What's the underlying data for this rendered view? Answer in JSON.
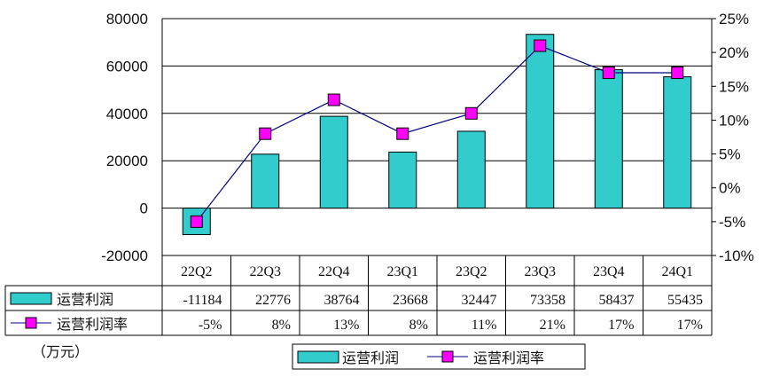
{
  "chart_data": {
    "type": "bar",
    "categories": [
      "22Q2",
      "22Q3",
      "22Q4",
      "23Q1",
      "23Q2",
      "23Q3",
      "23Q4",
      "24Q1"
    ],
    "series": [
      {
        "name": "运营利润",
        "type": "bar",
        "axis": "left",
        "color": "#33CCCC",
        "values": [
          -11184,
          22776,
          38764,
          23668,
          32447,
          73358,
          58437,
          55435
        ],
        "table_labels": [
          "-11184",
          "22776",
          "38764",
          "23668",
          "32447",
          "73358",
          "58437",
          "55435"
        ]
      },
      {
        "name": "运营利润率",
        "type": "line",
        "axis": "right",
        "color": "#FF00FF",
        "line_color": "#000080",
        "values": [
          -0.05,
          0.08,
          0.13,
          0.08,
          0.11,
          0.21,
          0.17,
          0.17
        ],
        "table_labels": [
          "-5%",
          "8%",
          "13%",
          "8%",
          "11%",
          "21%",
          "17%",
          "17%"
        ]
      }
    ],
    "y_left": {
      "ylim": [
        -20000,
        80000
      ],
      "ticks": [
        -20000,
        0,
        20000,
        40000,
        60000,
        80000
      ],
      "tick_labels": [
        "-20000",
        "0",
        "20000",
        "40000",
        "60000",
        "80000"
      ]
    },
    "y_right": {
      "ylim": [
        -0.1,
        0.25
      ],
      "ticks": [
        -0.1,
        -0.05,
        0,
        0.05,
        0.1,
        0.15,
        0.2,
        0.25
      ],
      "tick_labels": [
        "-10%",
        "-5%",
        "0%",
        "5%",
        "10%",
        "15%",
        "20%",
        "25%"
      ]
    },
    "unit_label": "（万元）",
    "gridlines": true,
    "legend": {
      "position": "bottom-center",
      "entries": [
        "运营利润",
        "运营利润率"
      ]
    },
    "data_table": true
  }
}
